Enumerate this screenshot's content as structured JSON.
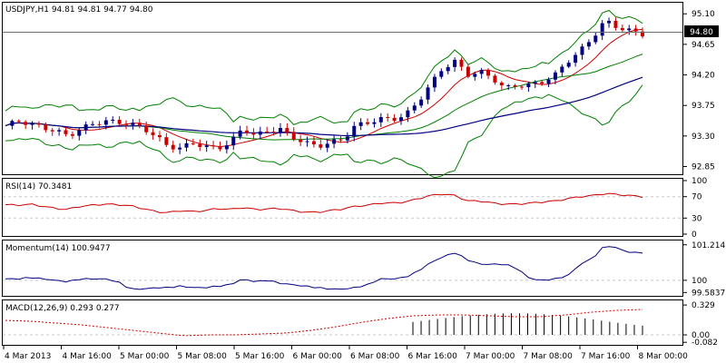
{
  "price_panel": {
    "header": "USDJPY,H1  94.81 94.81 94.77 94.80",
    "current_price_label": "94.80",
    "y_ticks": [
      "95.10",
      "94.65",
      "94.20",
      "93.75",
      "93.30",
      "92.85"
    ]
  },
  "rsi_panel": {
    "header": "RSI(14) 70.3481",
    "y_ticks": [
      "100",
      "70",
      "30",
      "0"
    ]
  },
  "momentum_panel": {
    "header": "Momentum(14) 100.9477",
    "y_ticks": [
      "101.2146",
      "100",
      "99.5837"
    ]
  },
  "macd_panel": {
    "header": "MACD(12,26,9) 0.293 0.277",
    "y_ticks": [
      "0.329",
      "0.00",
      "-0.082"
    ]
  },
  "x_axis": {
    "labels": [
      "4 Mar 2013",
      "4 Mar 16:00",
      "5 Mar 00:00",
      "5 Mar 08:00",
      "5 Mar 16:00",
      "6 Mar 00:00",
      "6 Mar 08:00",
      "6 Mar 16:00",
      "7 Mar 00:00",
      "7 Mar 08:00",
      "7 Mar 16:00",
      "8 Mar 00:00"
    ]
  },
  "colors": {
    "bull": "#000080",
    "bear": "#cc0000",
    "band": "#008000",
    "ma_fast": "#cc0000",
    "ma_mid": "#008000",
    "ma_slow": "#000080",
    "rsi": "#cc0000",
    "momentum": "#000080",
    "macd": "#000000",
    "signal": "#cc0000"
  },
  "chart_data": {
    "type": "candlestick",
    "symbol": "USDJPY",
    "timeframe": "H1",
    "price_range": [
      92.75,
      95.25
    ],
    "rsi_range": [
      0,
      100
    ],
    "momentum_range": [
      99.5,
      101.3
    ],
    "macd_range": [
      -0.1,
      0.36
    ],
    "price_anchors": [
      93.45,
      93.52,
      93.48,
      93.42,
      93.38,
      93.3,
      93.4,
      93.48,
      93.52,
      93.5,
      93.48,
      93.42,
      93.3,
      93.15,
      93.12,
      93.2,
      93.14,
      93.12,
      93.2,
      93.42,
      93.3,
      93.38,
      93.4,
      93.28,
      93.2,
      93.15,
      93.2,
      93.25,
      93.45,
      93.5,
      93.55,
      93.55,
      93.6,
      93.8,
      94.05,
      94.3,
      94.4,
      94.2,
      94.25,
      94.15,
      94.0,
      94.05,
      94.05,
      94.1,
      94.2,
      94.4,
      94.55,
      94.75,
      95.0,
      94.9,
      94.85,
      94.8
    ],
    "rsi_anchors": [
      55,
      54,
      56,
      52,
      48,
      46,
      52,
      54,
      56,
      55,
      53,
      48,
      42,
      40,
      44,
      42,
      44,
      48,
      46,
      50,
      46,
      47,
      48,
      44,
      41,
      41,
      44,
      47,
      52,
      54,
      58,
      58,
      60,
      66,
      72,
      75,
      72,
      62,
      62,
      58,
      56,
      56,
      58,
      60,
      62,
      66,
      70,
      72,
      76,
      74,
      72,
      70
    ],
    "momentum_anchors": [
      100.05,
      100.05,
      100.1,
      100.05,
      100.0,
      99.95,
      100.05,
      100.05,
      100.05,
      99.95,
      99.7,
      99.7,
      99.75,
      99.75,
      99.8,
      99.75,
      99.75,
      99.8,
      99.85,
      100.05,
      99.95,
      100.0,
      99.9,
      99.85,
      99.8,
      99.75,
      99.7,
      99.7,
      99.75,
      99.85,
      100.05,
      100.05,
      100.1,
      100.3,
      100.6,
      100.8,
      100.95,
      100.7,
      100.55,
      100.55,
      100.55,
      100.4,
      100.05,
      100.0,
      100.05,
      100.15,
      100.55,
      100.75,
      101.2,
      101.1,
      100.95,
      100.95
    ],
    "macd_signal_anchors": [
      0.16,
      0.15,
      0.13,
      0.11,
      0.08,
      0.05,
      0.02,
      -0.01,
      0.0,
      0.0,
      0.01,
      0.02,
      0.05,
      0.09,
      0.14,
      0.18,
      0.21,
      0.22,
      0.22,
      0.21,
      0.2,
      0.2,
      0.22,
      0.25,
      0.27,
      0.28
    ],
    "macd_histogram_count": 29,
    "macd_histogram_peak": 0.32
  }
}
